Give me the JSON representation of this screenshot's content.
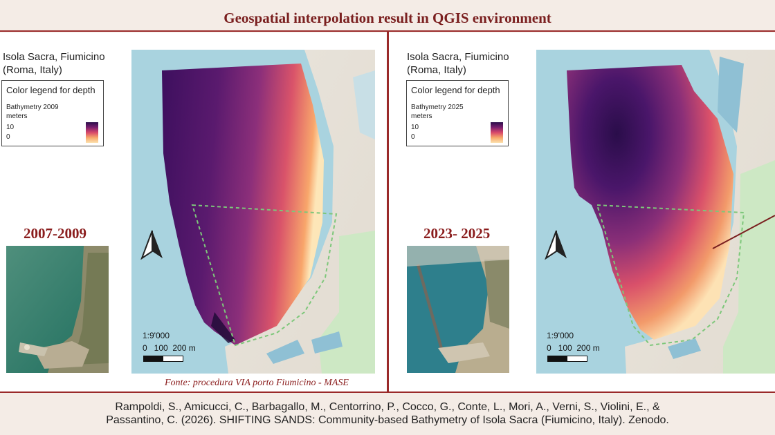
{
  "title": "Geospatial interpolation result in QGIS environment",
  "left": {
    "place_line1": "Isola Sacra, Fiumicino",
    "place_line2": "(Roma, Italy)",
    "legend_title": "Color legend for depth",
    "legend_layer": "Bathymetry 2009",
    "legend_unit": "meters",
    "legend_max": "10",
    "legend_min": "0",
    "period": "2007-2009",
    "scale_ratio": "1:9'000",
    "scale_ticks": "0   100  200 m",
    "source": "Fonte: procedura VIA porto Fiumicino - MASE"
  },
  "right": {
    "place_line1": "Isola Sacra, Fiumicino",
    "place_line2": "(Roma, Italy)",
    "legend_title": "Color legend for depth",
    "legend_layer": "Bathymetry 2025",
    "legend_unit": "meters",
    "legend_max": "10",
    "legend_min": "0",
    "period": "2023- 2025",
    "scale_ratio": "1:9'000",
    "scale_ticks": "0   100  200 m"
  },
  "citation_line1": "Rampoldi, S., Amicucci, C., Barbagallo, M., Centorrino, P., Cocco, G., Conte, L., Mori, A., Verni, S., Violini, E., &",
  "citation_line2": "Passantino, C. (2026). SHIFTING SANDS: Community-based Bathymetry of Isola Sacra (Fiumicino, Italy). Zenodo.",
  "colors": {
    "accent": "#8a1c1c",
    "sea": "#a9d3df",
    "depth_deep": "#2a0d4a",
    "depth_shallow": "#fce3b0"
  }
}
